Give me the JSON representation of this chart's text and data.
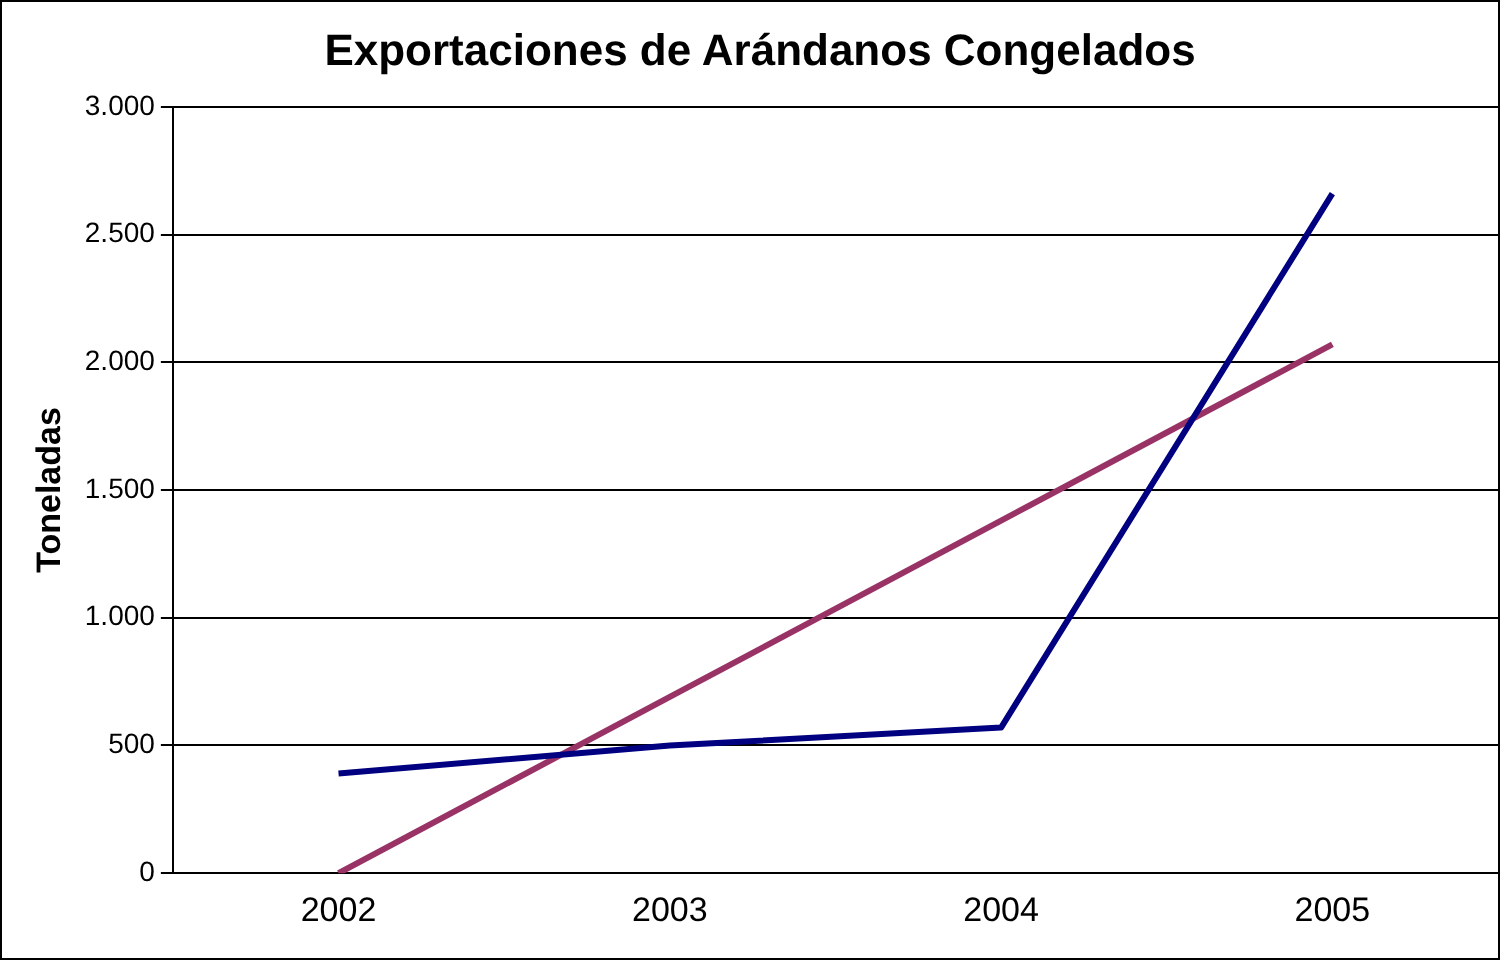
{
  "chart_data": {
    "type": "line",
    "title": "Exportaciones de Arándanos Congelados",
    "ylabel": "Toneladas",
    "categories": [
      "2002",
      "2003",
      "2004",
      "2005"
    ],
    "series": [
      {
        "color": "#000080",
        "values": [
          390,
          500,
          570,
          2660
        ]
      },
      {
        "color": "#993366",
        "values": [
          0,
          690,
          1380,
          2070
        ]
      }
    ],
    "ylim": [
      0,
      3000
    ],
    "yticks": [
      0,
      500,
      {
        "value": 1000,
        "label": "1.000"
      },
      {
        "value": 1500,
        "label": "1.500"
      },
      {
        "value": 2000,
        "label": "2.000"
      },
      {
        "value": 2500,
        "label": "2.500"
      },
      {
        "value": 3000,
        "label": "3.000"
      }
    ],
    "grid": "y",
    "legend": false,
    "marker": "none",
    "line_style": "solid"
  }
}
